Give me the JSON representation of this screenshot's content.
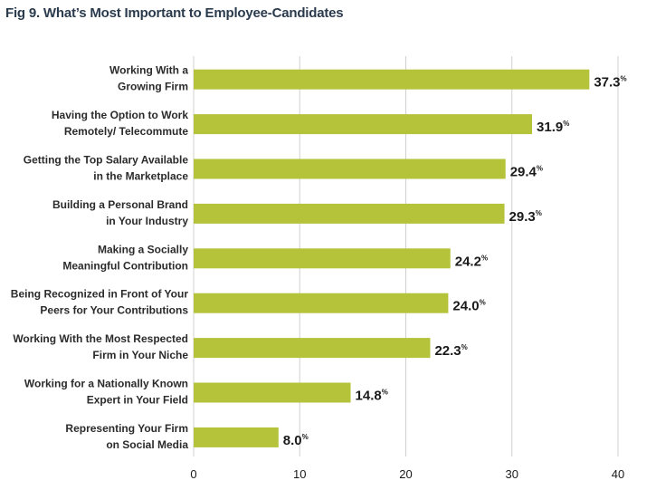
{
  "chart_data": {
    "type": "bar",
    "orientation": "horizontal",
    "title": "Fig 9. What’s Most Important to Employee-Candidates",
    "categories": [
      [
        "Working With a",
        "Growing Firm"
      ],
      [
        "Having the Option to Work",
        "Remotely/ Telecommute"
      ],
      [
        "Getting the Top Salary Available",
        "in the Marketplace"
      ],
      [
        "Building a Personal Brand",
        "in Your Industry"
      ],
      [
        "Making a Socially",
        "Meaningful Contribution"
      ],
      [
        "Being Recognized in Front of Your",
        "Peers for Your Contributions"
      ],
      [
        "Working With the Most Respected",
        "Firm in Your Niche"
      ],
      [
        "Working for a Nationally Known",
        "Expert in Your Field"
      ],
      [
        "Representing Your Firm",
        "on Social Media"
      ]
    ],
    "values": [
      37.3,
      31.9,
      29.4,
      29.3,
      24.2,
      24.0,
      22.3,
      14.8,
      8.0
    ],
    "value_labels": [
      "37.3",
      "31.9",
      "29.4",
      "29.3",
      "24.2",
      "24.0",
      "22.3",
      "14.8",
      "8.0"
    ],
    "value_unit": "%",
    "xlim": [
      0,
      40
    ],
    "xticks": [
      0,
      10,
      20,
      30,
      40
    ],
    "grid": "vertical",
    "bar_color": "#b5c33a",
    "grid_color": "#d0d0d0",
    "title_color": "#2b3b4e"
  }
}
